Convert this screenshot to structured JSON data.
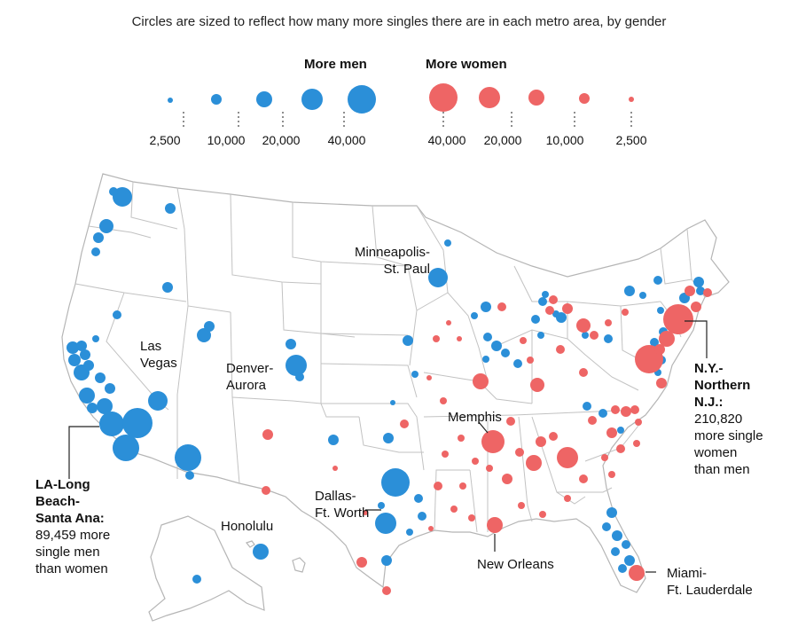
{
  "subtitle": "Circles are sized to reflect how many more singles there are in each metro area, by gender",
  "legend": {
    "men_heading": "More men",
    "women_heading": "More women",
    "men_values": [
      "2,500",
      "10,000",
      "20,000",
      "40,000"
    ],
    "women_values": [
      "40,000",
      "20,000",
      "10,000",
      "2,500"
    ]
  },
  "colors": {
    "men": "#2b8fd8",
    "women": "#ee6565",
    "border": "#b5b5b5"
  },
  "labels": {
    "minneapolis": [
      "Minneapolis-",
      "St. Paul"
    ],
    "las_vegas": [
      "Las",
      "Vegas"
    ],
    "denver": [
      "Denver-",
      "Aurora"
    ],
    "memphis": [
      "Memphis"
    ],
    "dallas": [
      "Dallas-",
      "Ft. Worth"
    ],
    "honolulu": [
      "Honolulu"
    ],
    "new_orleans": [
      "New Orleans"
    ],
    "miami": [
      "Miami-",
      "Ft. Lauderdale"
    ],
    "la_title": [
      "LA-Long",
      "Beach-",
      "Santa Ana:"
    ],
    "la_desc": [
      "89,459 more",
      "single men",
      "than women"
    ],
    "ny_title": [
      "N.Y.-",
      "Northern",
      "N.J.:"
    ],
    "ny_desc": [
      "210,820",
      "more single",
      "women",
      "than men"
    ]
  }
}
